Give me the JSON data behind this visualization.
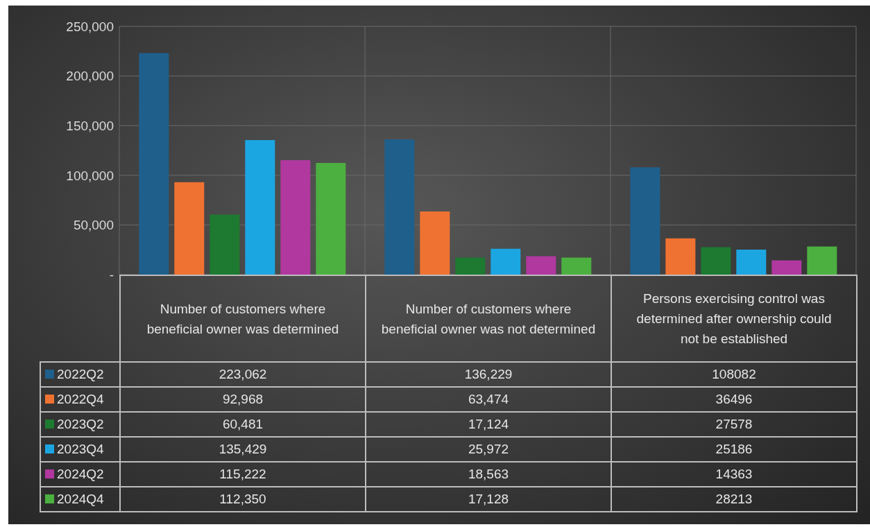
{
  "chart_data": {
    "type": "bar",
    "categories": [
      "Number of customers where beneficial owner was determined",
      "Number of customers where beneficial owner was not determined",
      "Persons exercising control was determined after ownership could not be established"
    ],
    "series": [
      {
        "name": "2022Q2",
        "color": "#1f5f8c",
        "values": [
          223062,
          136229,
          108082
        ],
        "value_labels": [
          "223,062",
          "136,229",
          "108082"
        ]
      },
      {
        "name": "2022Q4",
        "color": "#f07232",
        "values": [
          92968,
          63474,
          36496
        ],
        "value_labels": [
          "92,968",
          "63,474",
          "36496"
        ]
      },
      {
        "name": "2023Q2",
        "color": "#1d7a30",
        "values": [
          60481,
          17124,
          27578
        ],
        "value_labels": [
          "60,481",
          "17,124",
          "27578"
        ]
      },
      {
        "name": "2023Q4",
        "color": "#1ba6e2",
        "values": [
          135429,
          25972,
          25186
        ],
        "value_labels": [
          "135,429",
          "25,972",
          "25186"
        ]
      },
      {
        "name": "2024Q2",
        "color": "#b0389f",
        "values": [
          115222,
          18563,
          14363
        ],
        "value_labels": [
          "115,222",
          "18,563",
          "14363"
        ]
      },
      {
        "name": "2024Q4",
        "color": "#4cb040",
        "values": [
          112350,
          17128,
          28213
        ],
        "value_labels": [
          "112,350",
          "17,128",
          "28213"
        ]
      }
    ],
    "ylim": [
      0,
      250000
    ],
    "yticks": [
      {
        "value": 0,
        "label": "-"
      },
      {
        "value": 50000,
        "label": "50,000"
      },
      {
        "value": 100000,
        "label": "100,000"
      },
      {
        "value": 150000,
        "label": "150,000"
      },
      {
        "value": 200000,
        "label": "200,000"
      },
      {
        "value": 250000,
        "label": "250,000"
      }
    ],
    "grid": true,
    "legend": "bottom"
  }
}
